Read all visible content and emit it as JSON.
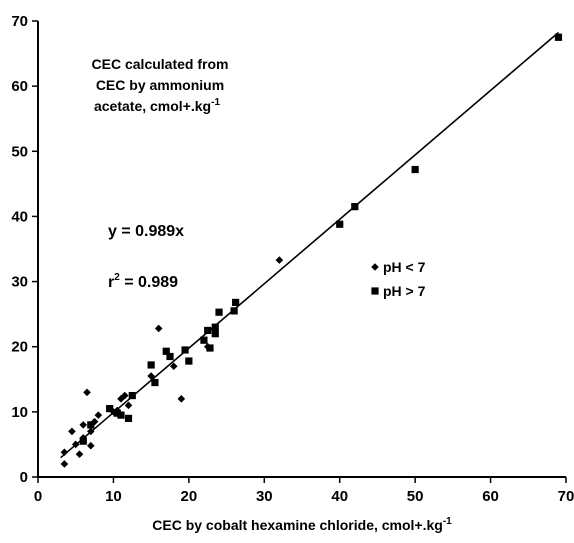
{
  "chart_data": {
    "type": "scatter",
    "title": "",
    "annotation_lines": [
      "CEC calculated from",
      "CEC by ammonium",
      "acetate, cmol+.kg"
    ],
    "annotation_superscript": "-1",
    "xlabel": "CEC by cobalt hexamine chloride, cmol+.kg",
    "xlabel_superscript": "-1",
    "xlim": [
      0,
      70
    ],
    "ylim": [
      0,
      70
    ],
    "xticks": [
      0,
      10,
      20,
      30,
      40,
      50,
      60,
      70
    ],
    "yticks": [
      0,
      10,
      20,
      30,
      40,
      50,
      60,
      70
    ],
    "grid": false,
    "legend_position": "right-middle",
    "equation": "y = 0.989x",
    "r2_prefix": "r",
    "r2_superscript": "2",
    "r2_value": " = 0.989",
    "regression": {
      "slope": 0.989,
      "intercept": 0
    },
    "series": [
      {
        "name": "pH < 7",
        "marker": "diamond",
        "points": [
          [
            3.5,
            2.0
          ],
          [
            3.5,
            3.8
          ],
          [
            4.5,
            7.0
          ],
          [
            5.0,
            5.0
          ],
          [
            5.5,
            3.5
          ],
          [
            6.0,
            6.0
          ],
          [
            6.0,
            8.0
          ],
          [
            6.5,
            13.0
          ],
          [
            7.0,
            4.8
          ],
          [
            7.0,
            7.0
          ],
          [
            7.5,
            8.5
          ],
          [
            8.0,
            9.5
          ],
          [
            10.0,
            10.0
          ],
          [
            10.5,
            10.2
          ],
          [
            11.0,
            12.0
          ],
          [
            11.5,
            12.5
          ],
          [
            12.0,
            11.0
          ],
          [
            15.0,
            15.5
          ],
          [
            16.0,
            22.8
          ],
          [
            18.0,
            17.0
          ],
          [
            19.0,
            12.0
          ],
          [
            22.5,
            20.0
          ],
          [
            32.0,
            33.3
          ]
        ]
      },
      {
        "name": "pH > 7",
        "marker": "square",
        "points": [
          [
            6.0,
            5.5
          ],
          [
            7.0,
            8.0
          ],
          [
            9.5,
            10.5
          ],
          [
            10.5,
            9.8
          ],
          [
            11.0,
            9.5
          ],
          [
            12.0,
            9.0
          ],
          [
            12.5,
            12.5
          ],
          [
            15.0,
            17.2
          ],
          [
            15.5,
            14.5
          ],
          [
            17.0,
            19.3
          ],
          [
            17.5,
            18.5
          ],
          [
            19.5,
            19.5
          ],
          [
            20.0,
            17.8
          ],
          [
            22.0,
            21.0
          ],
          [
            22.5,
            22.5
          ],
          [
            22.8,
            19.8
          ],
          [
            23.5,
            23.0
          ],
          [
            23.5,
            22.0
          ],
          [
            24.0,
            25.3
          ],
          [
            26.0,
            25.5
          ],
          [
            26.2,
            26.8
          ],
          [
            40.0,
            38.8
          ],
          [
            42.0,
            41.5
          ],
          [
            50.0,
            47.2
          ],
          [
            69.0,
            67.5
          ]
        ]
      }
    ]
  }
}
